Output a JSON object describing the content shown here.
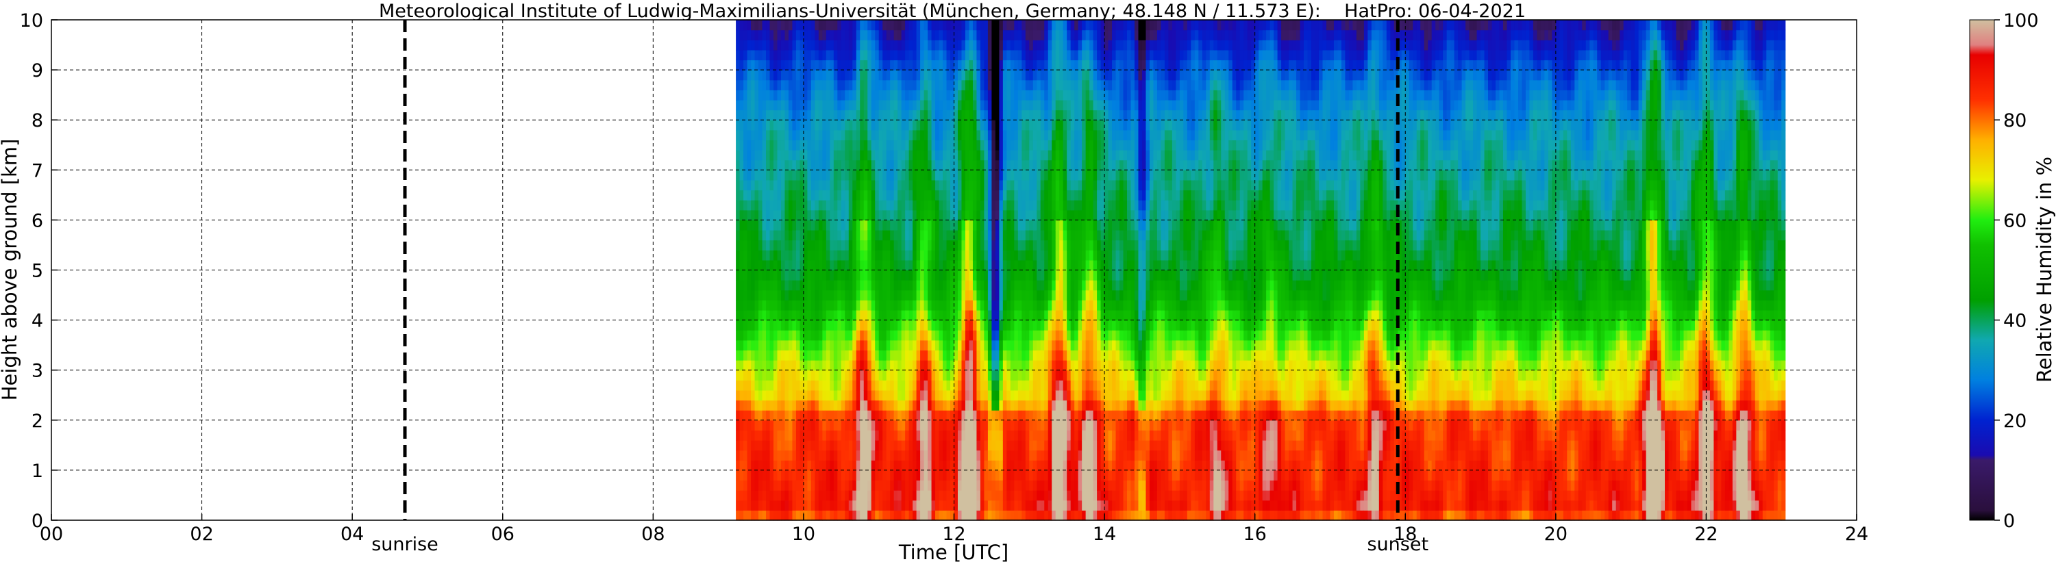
{
  "chart_data": {
    "type": "heatmap",
    "title": "Meteorological Institute of Ludwig-Maximilians-Universität (München, Germany; 48.148 N / 11.573 E):    HatPro: 06-04-2021",
    "xlabel": "Time [UTC]",
    "ylabel": "Height above ground [km]",
    "xlim": [
      0,
      24
    ],
    "ylim": [
      0,
      10
    ],
    "x_ticks": [
      "00",
      "02",
      "04",
      "06",
      "08",
      "10",
      "12",
      "14",
      "16",
      "18",
      "20",
      "22",
      "24"
    ],
    "y_ticks": [
      "0",
      "1",
      "2",
      "3",
      "4",
      "5",
      "6",
      "7",
      "8",
      "9",
      "10"
    ],
    "grid": true,
    "data_time_range": [
      9.1,
      23.05
    ],
    "sun_events": [
      {
        "label": "sunrise",
        "time": 4.7
      },
      {
        "label": "sunset",
        "time": 17.9
      }
    ],
    "colorbar": {
      "label": "Relative Humidity in %",
      "range": [
        0,
        100
      ],
      "ticks": [
        "0",
        "20",
        "40",
        "60",
        "80",
        "100"
      ]
    },
    "humidity_profile_by_height": {
      "height_km": [
        0,
        0.3,
        1,
        2,
        2.5,
        3,
        3.5,
        4,
        4.5,
        5,
        5.5,
        6,
        7,
        8,
        9,
        9.5,
        10
      ],
      "relative_humidity_pct": [
        80,
        88,
        86,
        84,
        72,
        68,
        62,
        55,
        48,
        44,
        42,
        40,
        36,
        32,
        24,
        18,
        12
      ]
    },
    "moist_events": [
      {
        "time": 10.8,
        "strength": 0.7
      },
      {
        "time": 11.6,
        "strength": 0.6
      },
      {
        "time": 12.2,
        "strength": 0.9
      },
      {
        "time": 13.4,
        "strength": 0.8
      },
      {
        "time": 13.8,
        "strength": 0.6
      },
      {
        "time": 15.5,
        "strength": 0.35
      },
      {
        "time": 16.2,
        "strength": 0.3
      },
      {
        "time": 17.6,
        "strength": 0.5
      },
      {
        "time": 21.3,
        "strength": 0.9
      },
      {
        "time": 22.0,
        "strength": 0.7
      },
      {
        "time": 22.5,
        "strength": 0.6
      }
    ],
    "dry_events": [
      {
        "time": 12.55,
        "strength": 0.9
      },
      {
        "time": 14.5,
        "strength": 0.4
      }
    ]
  }
}
